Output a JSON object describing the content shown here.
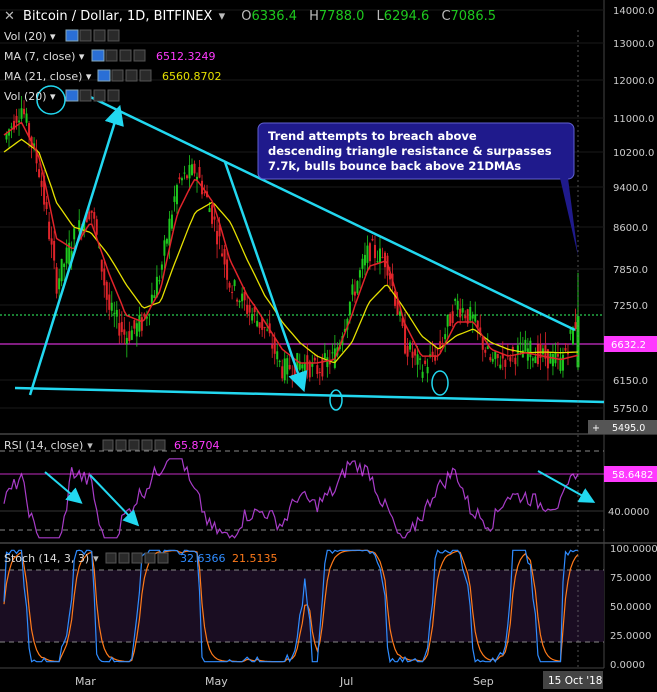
{
  "header": {
    "symbol": "Bitcoin / Dollar, 1D, BITFINEX",
    "o_label": "O",
    "o": "6336.4",
    "h_label": "H",
    "h": "7788.0",
    "l_label": "L",
    "l": "6294.6",
    "c_label": "C",
    "c": "7086.5"
  },
  "indicators": {
    "vol": "Vol (20)",
    "ma7": "MA (7, close)",
    "ma7_value": "6512.3249",
    "ma21": "MA (21, close)",
    "ma21_value": "6560.8702",
    "vol2": "Vol (20)"
  },
  "annotation": "Trend attempts to breach above descending triangle resistance & surpasses 7.7k, bulls bounce back above 21DMAs",
  "price_axis": [
    "14000.0",
    "13000.0",
    "12000.0",
    "11000.0",
    "10200.0",
    "9400.0",
    "8600.0",
    "7850.0",
    "7250.0",
    "6150.0",
    "5750.0"
  ],
  "price_tags": {
    "ma_tag": "6632.2",
    "low_tag": "5495.0"
  },
  "rsi": {
    "label": "RSI (14, close)",
    "value": "65.8704",
    "tag": "58.6482",
    "axis": [
      "40.0000"
    ]
  },
  "stoch": {
    "label": "Stoch (14, 3, 3)",
    "k": "32.6366",
    "d": "21.5135",
    "axis": [
      "100.0000",
      "75.0000",
      "50.0000",
      "25.0000",
      "0.0000"
    ]
  },
  "time_axis": {
    "labels": [
      "Mar",
      "May",
      "Jul",
      "Sep"
    ],
    "current": "15 Oct '18"
  },
  "colors": {
    "bg": "#000000",
    "up": "#1ec81e",
    "down": "#e0242a",
    "ma7": "#ff3aff",
    "ma21": "#e5e000",
    "trend": "#22d8f0",
    "rsi": "#a83cc8",
    "stoch_k": "#2f8cff",
    "stoch_d": "#ff7a1a",
    "callout": "#1f1a8c"
  },
  "chart_data": {
    "type": "line",
    "title": "Bitcoin / Dollar, 1D, BITFINEX",
    "xlabel": "",
    "ylabel": "",
    "x_ticks": [
      "Mar",
      "May",
      "Jul",
      "Sep"
    ],
    "series": [
      {
        "name": "close (approx)",
        "values": [
          10500,
          11300,
          9800,
          7600,
          8400,
          9000,
          7200,
          6800,
          7000,
          7800,
          9500,
          9800,
          8800,
          7600,
          7200,
          6900,
          6300,
          6400,
          6300,
          6500,
          7400,
          8200,
          8000,
          6700,
          6300,
          6600,
          7300,
          7000,
          6400,
          6500,
          6600,
          6500,
          6400,
          7086.5
        ]
      },
      {
        "name": "MA (7, close)",
        "values": [
          10600,
          10900,
          10100,
          8400,
          8200,
          8700,
          7800,
          7100,
          7000,
          7500,
          8900,
          9600,
          9100,
          8000,
          7400,
          7000,
          6600,
          6400,
          6400,
          6450,
          7100,
          7900,
          8000,
          7000,
          6500,
          6500,
          7000,
          7000,
          6600,
          6500,
          6550,
          6500,
          6450,
          6512.3
        ]
      },
      {
        "name": "MA (21, close)",
        "values": [
          10200,
          10500,
          10200,
          9100,
          8600,
          8500,
          8100,
          7600,
          7200,
          7300,
          8100,
          8900,
          9100,
          8700,
          8000,
          7400,
          7000,
          6700,
          6500,
          6400,
          6700,
          7300,
          7600,
          7200,
          6800,
          6600,
          6800,
          6900,
          6700,
          6600,
          6550,
          6560,
          6550,
          6560.9
        ]
      }
    ],
    "annotations": [
      "Trend attempts to breach above descending triangle resistance & surpasses 7.7k, bulls bounce back above 21DMAs"
    ]
  }
}
